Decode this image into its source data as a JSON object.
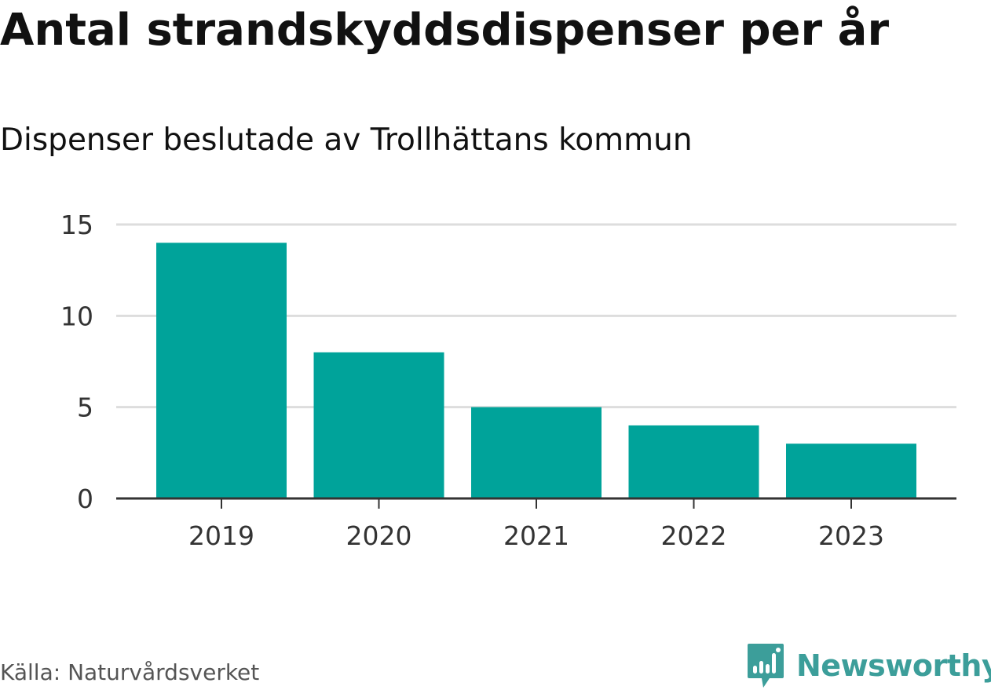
{
  "header": {
    "title": "Antal strandskyddsdispenser per år",
    "subtitle": "Dispenser beslutade av Trollhättans kommun"
  },
  "footer": {
    "source": "Källa: Naturvårdsverket",
    "brand_name": "Newsworthy"
  },
  "colors": {
    "bar": "#00a39a",
    "grid": "#dddddd",
    "axis": "#333333",
    "brand": "#3c9e9a"
  },
  "chart_data": {
    "type": "bar",
    "title": "Antal strandskyddsdispenser per år",
    "subtitle": "Dispenser beslutade av Trollhättans kommun",
    "categories": [
      "2019",
      "2020",
      "2021",
      "2022",
      "2023"
    ],
    "values": [
      14,
      8,
      5,
      4,
      3
    ],
    "xlabel": "",
    "ylabel": "",
    "ylim": [
      0,
      15
    ],
    "yticks": [
      0,
      5,
      10,
      15
    ],
    "grid": true,
    "legend": "none"
  }
}
